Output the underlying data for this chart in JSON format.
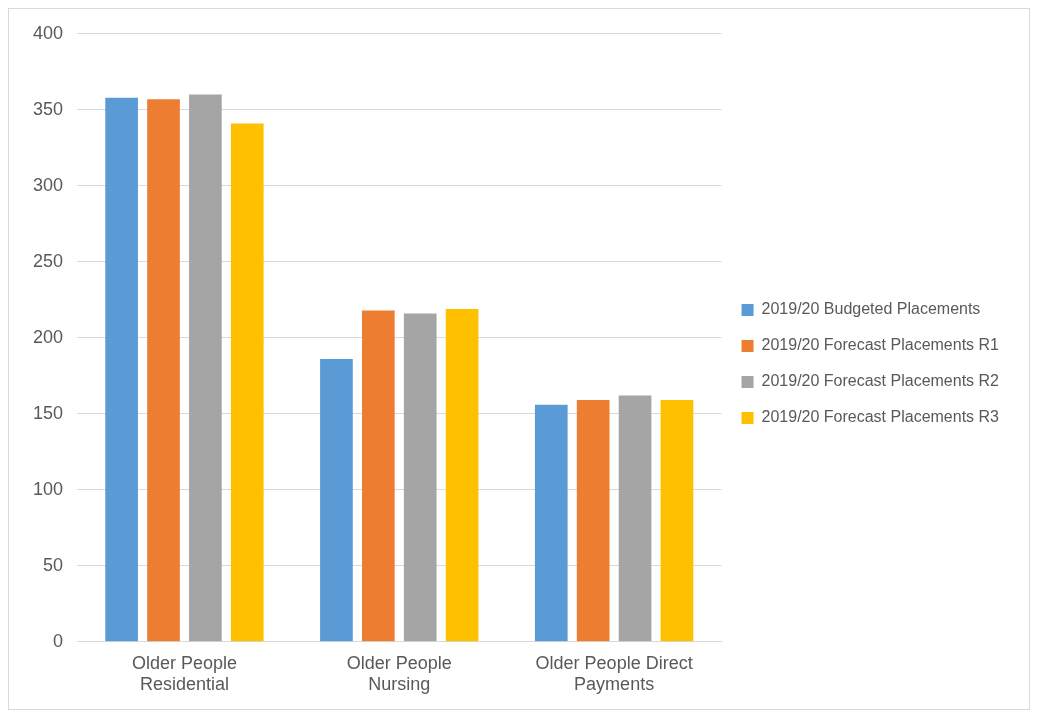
{
  "chart_data": {
    "type": "bar",
    "categories": [
      "Older People Residential",
      "Older People Nursing",
      "Older People Direct Payments"
    ],
    "series": [
      {
        "name": "2019/20 Budgeted Placements",
        "color": "#5b9bd5",
        "values": [
          358,
          186,
          156
        ]
      },
      {
        "name": "2019/20 Forecast Placements R1",
        "color": "#ed7d31",
        "values": [
          357,
          218,
          159
        ]
      },
      {
        "name": "2019/20 Forecast Placements R2",
        "color": "#a5a5a5",
        "values": [
          360,
          216,
          162
        ]
      },
      {
        "name": "2019/20 Forecast Placements R3",
        "color": "#ffc000",
        "values": [
          341,
          219,
          159
        ]
      }
    ],
    "ylim": [
      0,
      400
    ],
    "yticks": [
      0,
      50,
      100,
      150,
      200,
      250,
      300,
      350,
      400
    ],
    "grid": "y",
    "legend": "right"
  }
}
